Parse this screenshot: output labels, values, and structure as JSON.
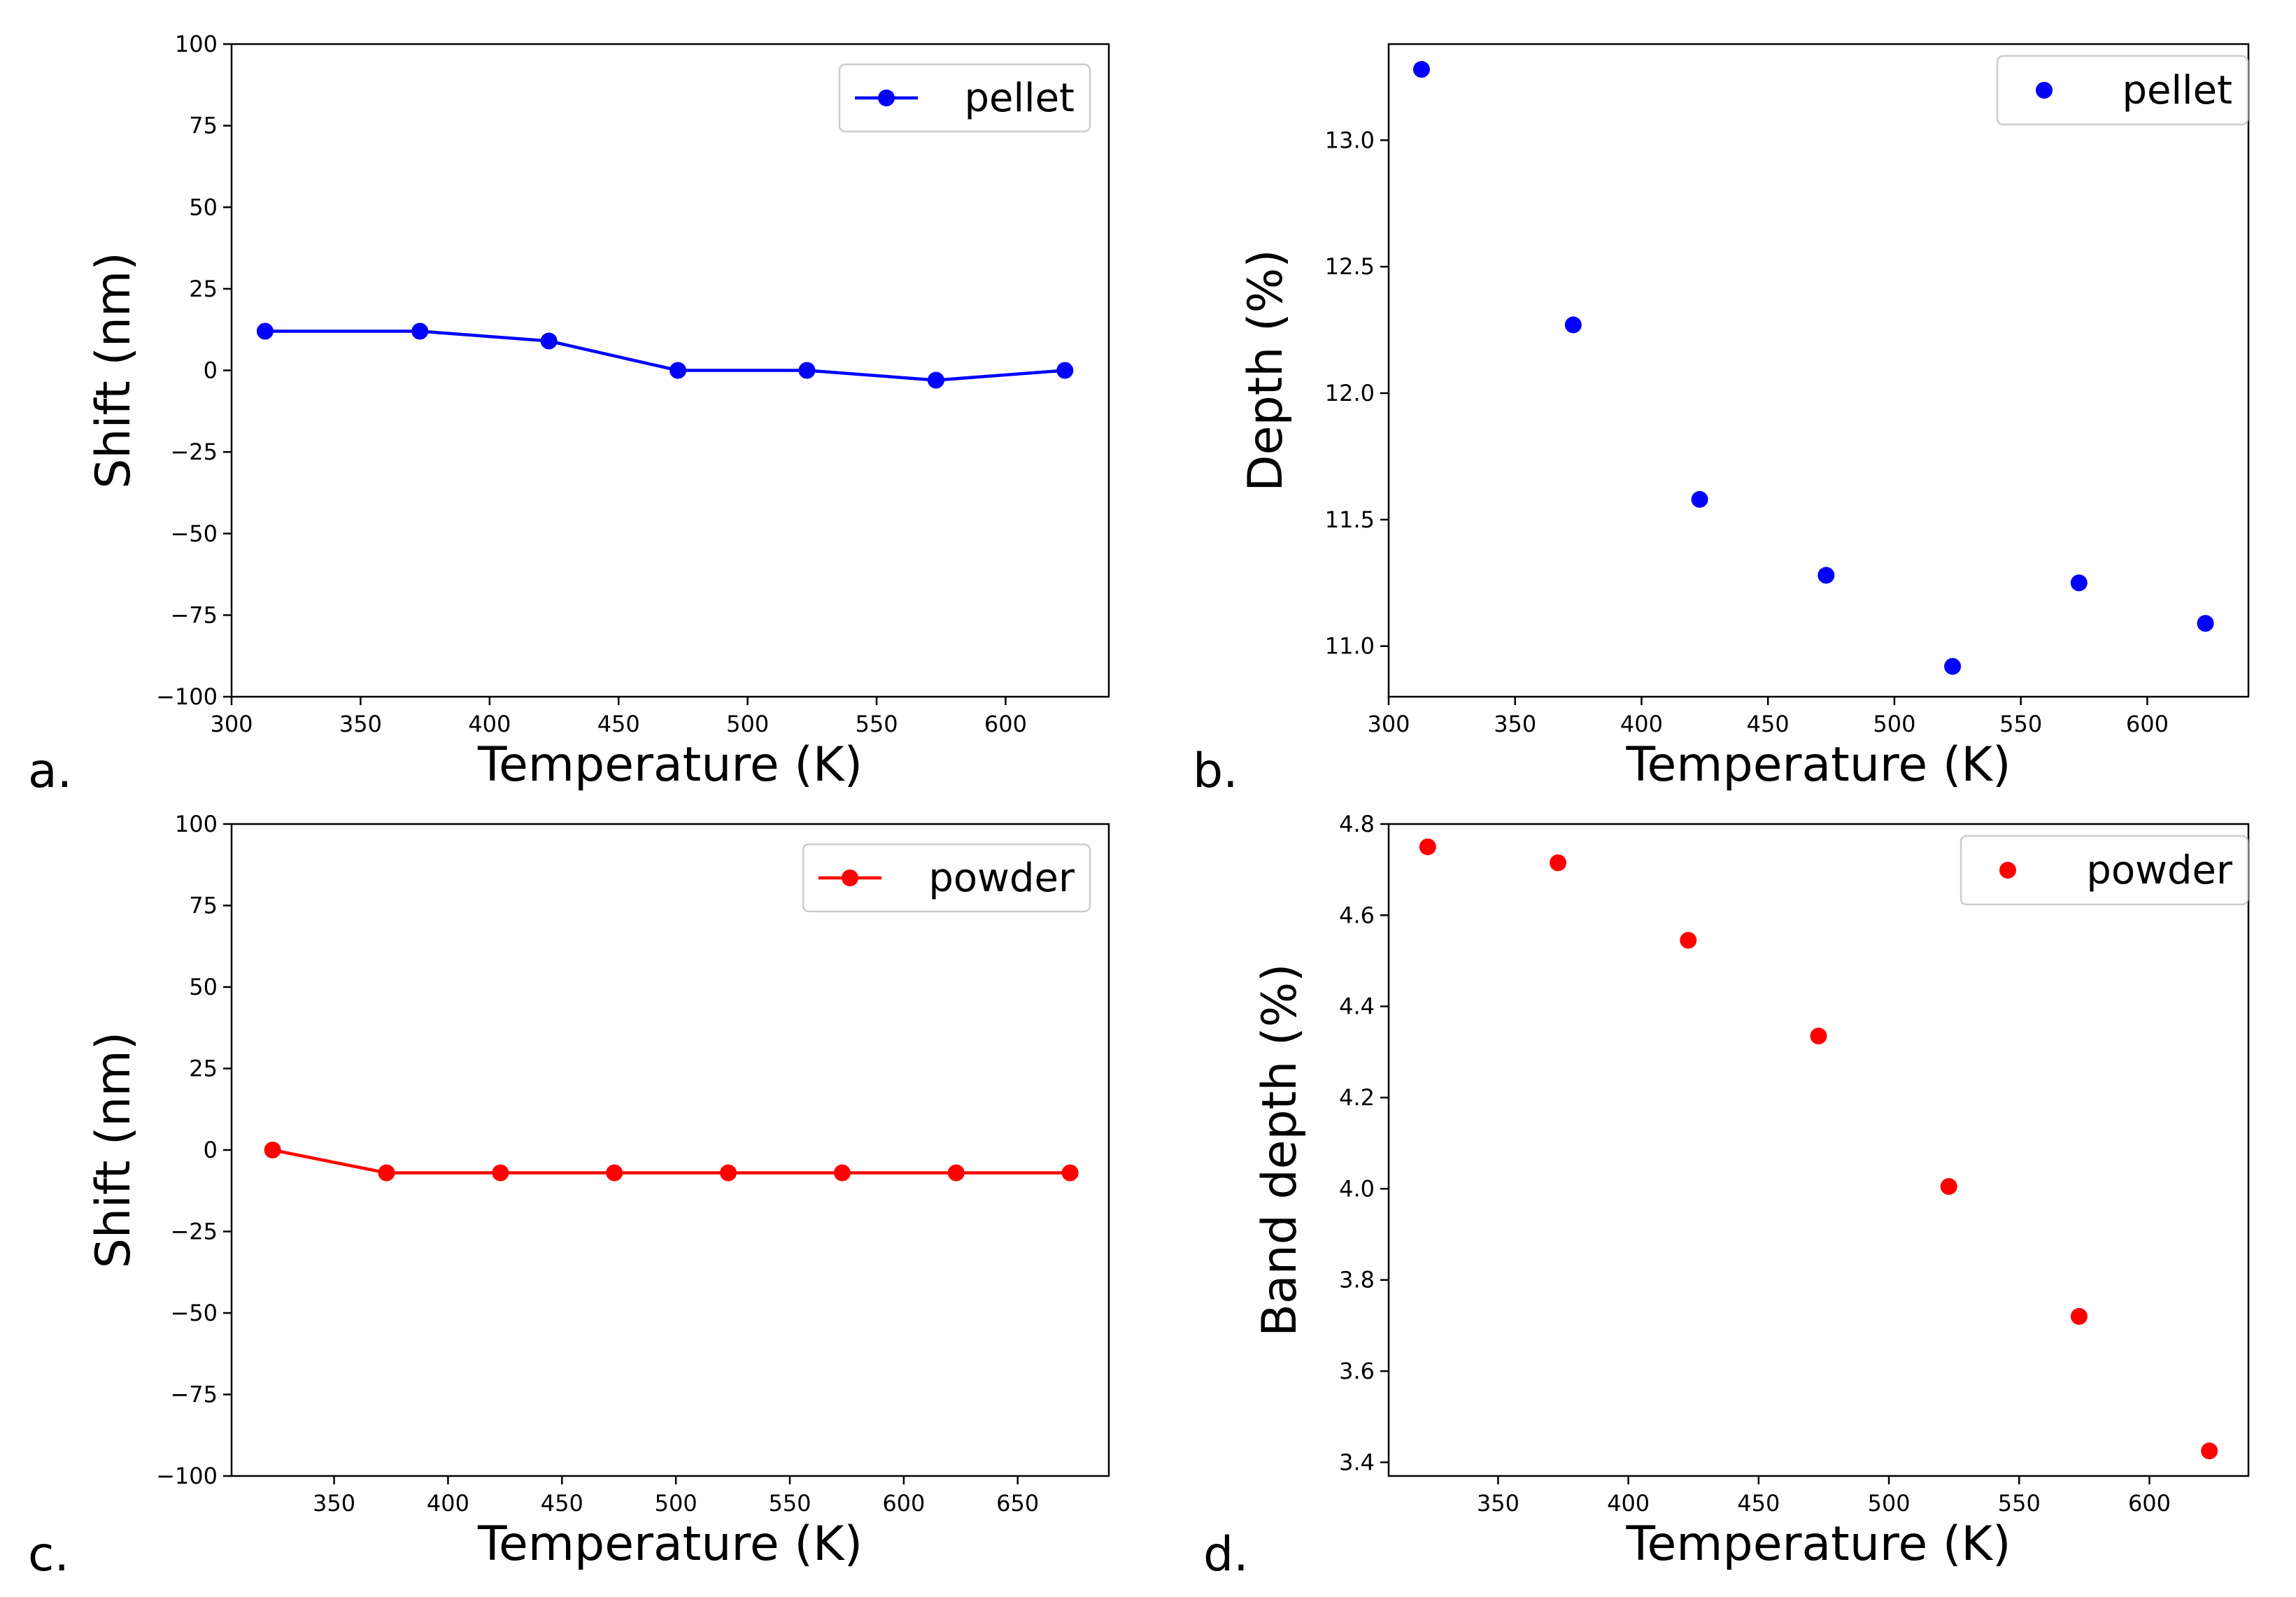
{
  "figure": {
    "panels": [
      "a.",
      "b.",
      "c.",
      "d."
    ]
  },
  "chart_data": [
    {
      "type": "line",
      "title": "",
      "xlabel": "Temperature (K)",
      "ylabel": "Shift (nm)",
      "xlim": [
        300,
        640
      ],
      "ylim": [
        -100,
        100
      ],
      "xticks": [
        300,
        350,
        400,
        450,
        500,
        550,
        600
      ],
      "yticks": [
        -100,
        -75,
        -50,
        -25,
        0,
        25,
        50,
        75,
        100
      ],
      "x": [
        313,
        373,
        423,
        473,
        523,
        573,
        623
      ],
      "series": [
        {
          "name": "pellet",
          "color": "#0000ff",
          "values": [
            12,
            12,
            9,
            0,
            0,
            -3,
            0
          ]
        }
      ],
      "marker": true,
      "legend": "top-right",
      "grid": false
    },
    {
      "type": "scatter",
      "title": "",
      "xlabel": "Temperature (K)",
      "ylabel": "Depth (%)",
      "xlim": [
        300,
        640
      ],
      "ylim": [
        10.8,
        13.38
      ],
      "xticks": [
        300,
        350,
        400,
        450,
        500,
        550,
        600
      ],
      "yticks": [
        11.0,
        11.5,
        12.0,
        12.5,
        13.0
      ],
      "x": [
        313,
        373,
        423,
        473,
        523,
        573,
        623
      ],
      "series": [
        {
          "name": "pellet",
          "color": "#0000ff",
          "values": [
            13.28,
            12.27,
            11.58,
            11.28,
            10.92,
            11.25,
            11.09
          ]
        }
      ],
      "legend": "top-right",
      "grid": false
    },
    {
      "type": "line",
      "title": "",
      "xlabel": "Temperature (K)",
      "ylabel": "Shift (nm)",
      "xlim": [
        305,
        690
      ],
      "ylim": [
        -100,
        100
      ],
      "xticks": [
        350,
        400,
        450,
        500,
        550,
        600,
        650
      ],
      "yticks": [
        -100,
        -75,
        -50,
        -25,
        0,
        25,
        50,
        75,
        100
      ],
      "x": [
        323,
        373,
        423,
        473,
        523,
        573,
        623,
        673
      ],
      "series": [
        {
          "name": "powder",
          "color": "#ff0000",
          "values": [
            0,
            -7,
            -7,
            -7,
            -7,
            -7,
            -7,
            -7
          ]
        }
      ],
      "marker": true,
      "legend": "top-right",
      "grid": false
    },
    {
      "type": "scatter",
      "title": "",
      "xlabel": "Temperature (K)",
      "ylabel": "Band depth (%)",
      "xlim": [
        308,
        638
      ],
      "ylim": [
        3.37,
        4.8
      ],
      "xticks": [
        350,
        400,
        450,
        500,
        550,
        600
      ],
      "yticks": [
        3.4,
        3.6,
        3.8,
        4.0,
        4.2,
        4.4,
        4.6,
        4.8
      ],
      "x": [
        323,
        373,
        423,
        473,
        523,
        573,
        623
      ],
      "series": [
        {
          "name": "powder",
          "color": "#ff0000",
          "values": [
            4.75,
            4.715,
            4.545,
            4.335,
            4.005,
            3.72,
            3.425
          ]
        }
      ],
      "legend": "top-right",
      "grid": false
    }
  ]
}
